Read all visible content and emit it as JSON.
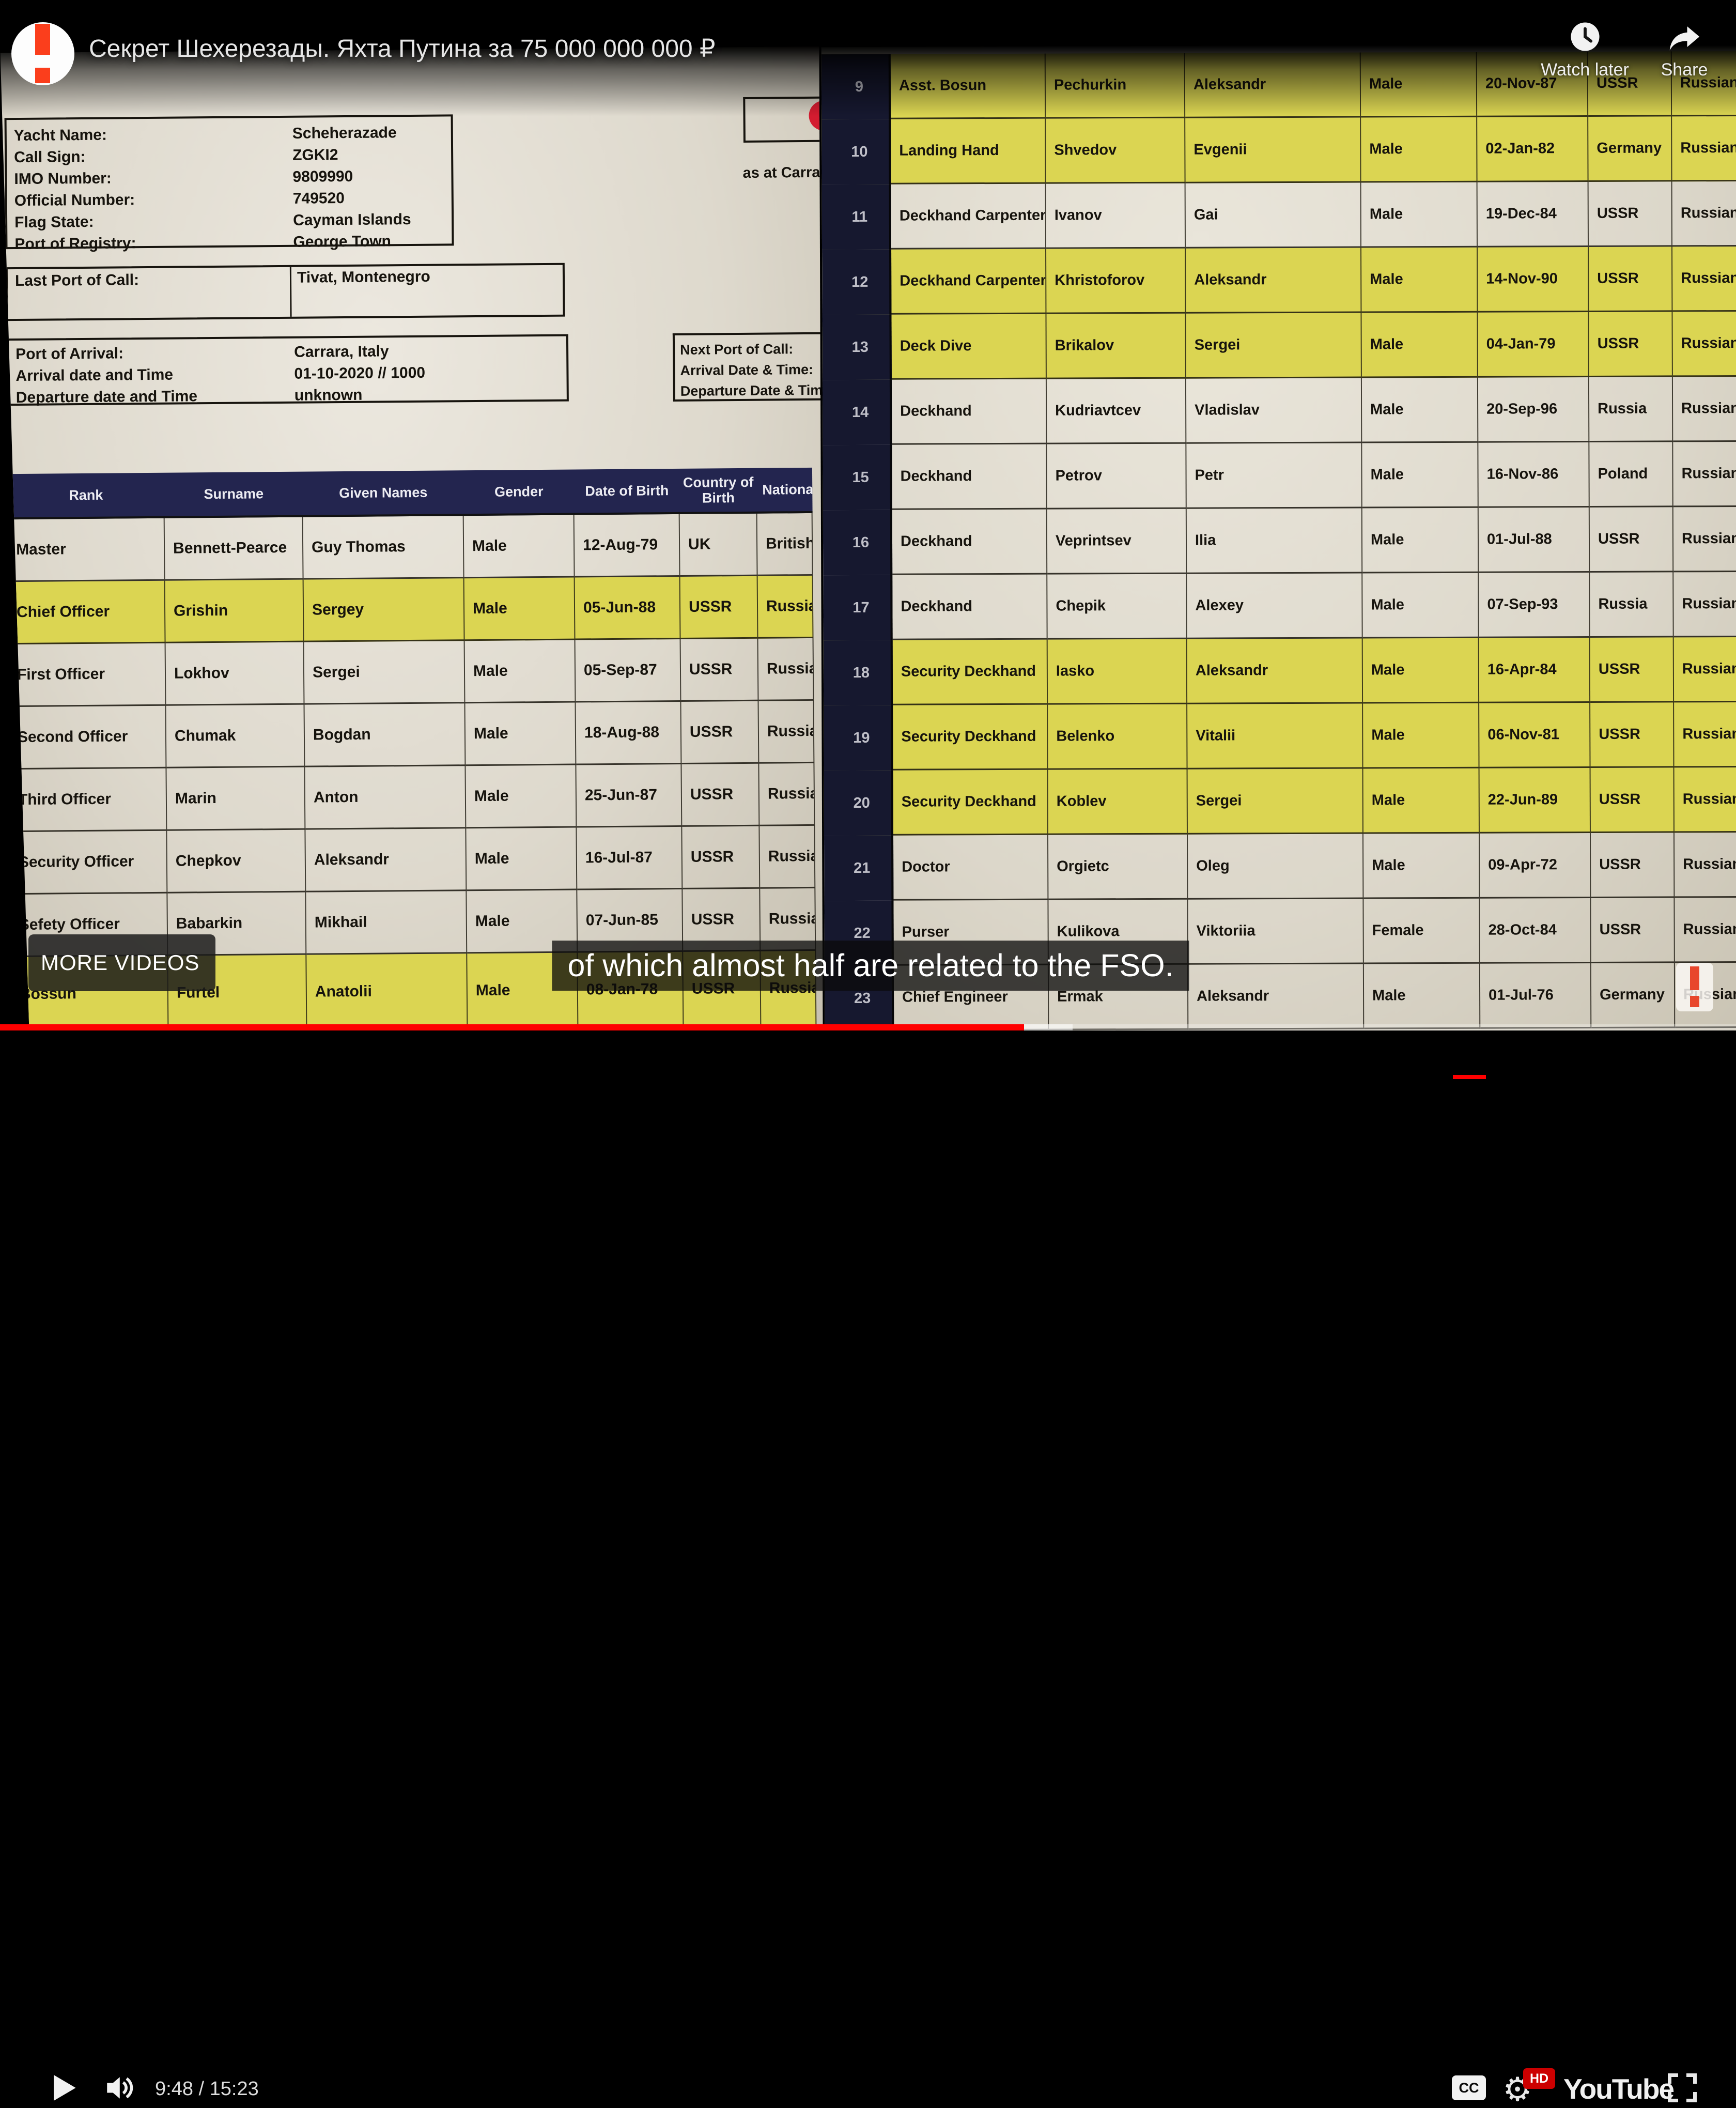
{
  "player": {
    "title": "Секрет Шехерезады. Яхта Путина за 75 000 000 000 ₽",
    "watch_later_label": "Watch later",
    "share_label": "Share",
    "more_videos_label": "MORE VIDEOS",
    "caption_text": "of which almost half are related to the FSO.",
    "time_display": "9:48 / 15:23",
    "cc_label": "CC",
    "hd_label": "HD",
    "youtube_label": "YouTube",
    "progress_played_pct": 59,
    "progress_buffered_pct": 61.8,
    "accent_red": "#ff0000"
  },
  "colors": {
    "highlight_yellow": "#dbd552",
    "header_navy": "#23254f",
    "number_column_navy": "#16182f",
    "page_paper": "#ded9cd",
    "logo_red": "#fb3e1c"
  },
  "doc_left": {
    "vessel_info": [
      {
        "label": "Yacht Name:",
        "value": "Scheherazade"
      },
      {
        "label": "Call Sign:",
        "value": "ZGKI2"
      },
      {
        "label": "IMO Number:",
        "value": "9809990"
      },
      {
        "label": "Official Number:",
        "value": "749520"
      },
      {
        "label": "Flag State:",
        "value": "Cayman Islands"
      },
      {
        "label": "Port of Registry:",
        "value": "George Town"
      }
    ],
    "last_port": {
      "label": "Last Port of Call:",
      "value": "Tivat, Montenegro"
    },
    "arrival_info": [
      {
        "label": "Port of Arrival:",
        "value": "Carrara, Italy"
      },
      {
        "label": "Arrival date and Time",
        "value": "01-10-2020 // 1000"
      },
      {
        "label": "Departure date and Time",
        "value": "unknown"
      }
    ],
    "next_port_lines": [
      "Next Port of Call:",
      "Arrival Date & Time:",
      "Departure Date & Tim"
    ],
    "as_at_note": "as at Carra",
    "table": {
      "headers": [
        "Rank",
        "Surname",
        "Given Names",
        "Gender",
        "Date of Birth",
        "Country of Birth",
        "Nationa"
      ],
      "rows": [
        {
          "rank": "Master",
          "surname": "Bennett-Pearce",
          "given": "Guy Thomas",
          "gender": "Male",
          "dob": "12-Aug-79",
          "country": "UK",
          "nat": "British",
          "hl": false
        },
        {
          "rank": "Chief Officer",
          "surname": "Grishin",
          "given": "Sergey",
          "gender": "Male",
          "dob": "05-Jun-88",
          "country": "USSR",
          "nat": "Russian",
          "hl": true
        },
        {
          "rank": "First Officer",
          "surname": "Lokhov",
          "given": "Sergei",
          "gender": "Male",
          "dob": "05-Sep-87",
          "country": "USSR",
          "nat": "Russian",
          "hl": false
        },
        {
          "rank": "Second Officer",
          "surname": "Chumak",
          "given": "Bogdan",
          "gender": "Male",
          "dob": "18-Aug-88",
          "country": "USSR",
          "nat": "Russian",
          "hl": false
        },
        {
          "rank": "Third Officer",
          "surname": "Marin",
          "given": "Anton",
          "gender": "Male",
          "dob": "25-Jun-87",
          "country": "USSR",
          "nat": "Russian",
          "hl": false
        },
        {
          "rank": "Security Officer",
          "surname": "Chepkov",
          "given": "Aleksandr",
          "gender": "Male",
          "dob": "16-Jul-87",
          "country": "USSR",
          "nat": "Russian",
          "hl": false
        },
        {
          "rank": "Sefety Officer",
          "surname": "Babarkin",
          "given": "Mikhail",
          "gender": "Male",
          "dob": "07-Jun-85",
          "country": "USSR",
          "nat": "Russian",
          "hl": false
        },
        {
          "rank": "Bossun",
          "surname": "Furtel",
          "given": "Anatolii",
          "gender": "Male",
          "dob": "08-Jan-78",
          "country": "USSR",
          "nat": "Russian",
          "hl": true
        }
      ]
    }
  },
  "doc_right": {
    "rows": [
      {
        "num": "9",
        "rank": "Asst. Bosun",
        "surname": "Pechurkin",
        "given": "Aleksandr",
        "gender": "Male",
        "dob": "20-Nov-87",
        "country": "USSR",
        "nat": "Russian",
        "hl": true
      },
      {
        "num": "10",
        "rank": "Landing Hand",
        "surname": "Shvedov",
        "given": "Evgenii",
        "gender": "Male",
        "dob": "02-Jan-82",
        "country": "Germany",
        "nat": "Russian",
        "hl": true
      },
      {
        "num": "11",
        "rank": "Deckhand Carpenter",
        "surname": "Ivanov",
        "given": "Gai",
        "gender": "Male",
        "dob": "19-Dec-84",
        "country": "USSR",
        "nat": "Russian",
        "hl": false
      },
      {
        "num": "12",
        "rank": "Deckhand Carpenter",
        "surname": "Khristoforov",
        "given": "Aleksandr",
        "gender": "Male",
        "dob": "14-Nov-90",
        "country": "USSR",
        "nat": "Russian",
        "hl": true
      },
      {
        "num": "13",
        "rank": "Deck Dive",
        "surname": "Brikalov",
        "given": "Sergei",
        "gender": "Male",
        "dob": "04-Jan-79",
        "country": "USSR",
        "nat": "Russian",
        "hl": true
      },
      {
        "num": "14",
        "rank": "Deckhand",
        "surname": "Kudriavtcev",
        "given": "Vladislav",
        "gender": "Male",
        "dob": "20-Sep-96",
        "country": "Russia",
        "nat": "Russian",
        "hl": false
      },
      {
        "num": "15",
        "rank": "Deckhand",
        "surname": "Petrov",
        "given": "Petr",
        "gender": "Male",
        "dob": "16-Nov-86",
        "country": "Poland",
        "nat": "Russian",
        "hl": false
      },
      {
        "num": "16",
        "rank": "Deckhand",
        "surname": "Veprintsev",
        "given": "Ilia",
        "gender": "Male",
        "dob": "01-Jul-88",
        "country": "USSR",
        "nat": "Russian",
        "hl": false
      },
      {
        "num": "17",
        "rank": "Deckhand",
        "surname": "Chepik",
        "given": "Alexey",
        "gender": "Male",
        "dob": "07-Sep-93",
        "country": "Russia",
        "nat": "Russian",
        "hl": false
      },
      {
        "num": "18",
        "rank": "Security Deckhand",
        "surname": "Iasko",
        "given": "Aleksandr",
        "gender": "Male",
        "dob": "16-Apr-84",
        "country": "USSR",
        "nat": "Russian",
        "hl": true
      },
      {
        "num": "19",
        "rank": "Security Deckhand",
        "surname": "Belenko",
        "given": "Vitalii",
        "gender": "Male",
        "dob": "06-Nov-81",
        "country": "USSR",
        "nat": "Russian",
        "hl": true
      },
      {
        "num": "20",
        "rank": "Security Deckhand",
        "surname": "Koblev",
        "given": "Sergei",
        "gender": "Male",
        "dob": "22-Jun-89",
        "country": "USSR",
        "nat": "Russian",
        "hl": true
      },
      {
        "num": "21",
        "rank": "Doctor",
        "surname": "Orgietc",
        "given": "Oleg",
        "gender": "Male",
        "dob": "09-Apr-72",
        "country": "USSR",
        "nat": "Russian",
        "hl": false
      },
      {
        "num": "22",
        "rank": "Purser",
        "surname": "Kulikova",
        "given": "Viktoriia",
        "gender": "Female",
        "dob": "28-Oct-84",
        "country": "USSR",
        "nat": "Russian",
        "hl": false
      },
      {
        "num": "23",
        "rank": "Chief Engineer",
        "surname": "Ermak",
        "given": "Aleksandr",
        "gender": "Male",
        "dob": "01-Jul-76",
        "country": "Germany",
        "nat": "Russian",
        "hl": false
      }
    ]
  }
}
